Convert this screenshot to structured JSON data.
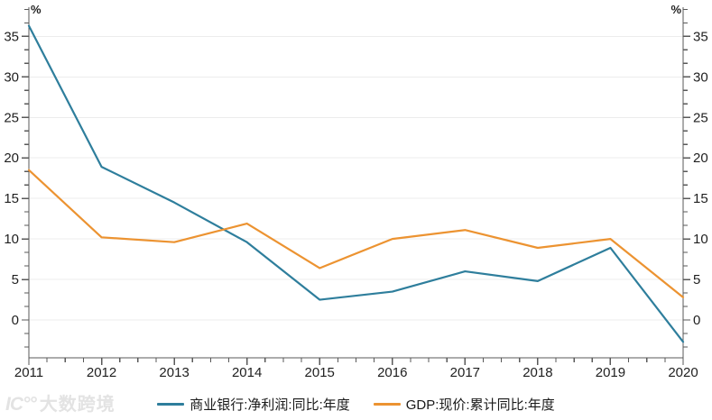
{
  "chart_data": {
    "type": "line",
    "title": "",
    "x": [
      2011,
      2012,
      2013,
      2014,
      2015,
      2016,
      2017,
      2018,
      2019,
      2020
    ],
    "series": [
      {
        "name": "商业银行:净利润:同比:年度",
        "color": "#2e7e9c",
        "values": [
          36.3,
          18.9,
          14.5,
          9.6,
          2.5,
          3.5,
          6.0,
          4.8,
          8.9,
          -2.7
        ]
      },
      {
        "name": "GDP:现价:累计同比:年度",
        "color": "#ec9331",
        "values": [
          18.5,
          10.2,
          9.6,
          11.9,
          6.4,
          10.0,
          11.1,
          8.9,
          10.0,
          2.8
        ]
      }
    ],
    "unit_left": "%",
    "unit_right": "%",
    "ylim": [
      -4.67,
      38.6
    ],
    "y_major_ticks": [
      0,
      5,
      10,
      15,
      20,
      25,
      30,
      35
    ],
    "y_minor_step": 1.6667,
    "x_minor_per_year": 4,
    "grid": "horizontal-major",
    "legend_position": "bottom-center",
    "colors": {
      "axis": "#595959",
      "grid": "#ececec",
      "tick_label": "#1f1f1f"
    }
  },
  "watermark": {
    "logo": "IC°°",
    "text": "大数跨境"
  }
}
